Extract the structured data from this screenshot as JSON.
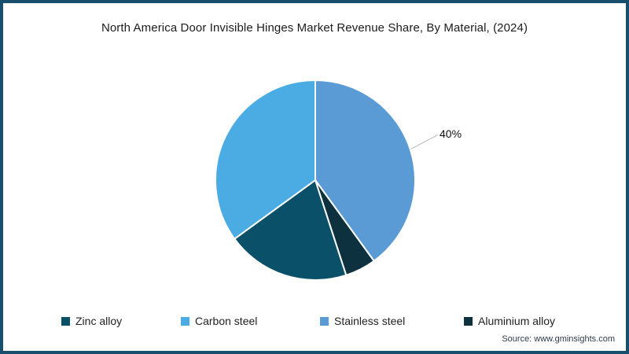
{
  "chart_data": {
    "type": "pie",
    "title": "North America Door Invisible Hinges Market Revenue Share, By Material, (2024)",
    "slices": [
      {
        "label": "Stainless steel",
        "value": 40,
        "color": "#5b9bd5"
      },
      {
        "label": "Aluminium alloy",
        "value": 5,
        "color": "#0e3140"
      },
      {
        "label": "Zinc alloy",
        "value": 20,
        "color": "#0a5068"
      },
      {
        "label": "Carbon steel",
        "value": 35,
        "color": "#4aace2"
      }
    ],
    "start_angle": "12-oclock-clockwise",
    "annotation": {
      "text": "40%",
      "slice": "Stainless steel"
    },
    "legend_order": [
      "Zinc alloy",
      "Carbon steel",
      "Stainless steel",
      "Aluminium alloy"
    ],
    "legend_position": "bottom",
    "grid": false
  },
  "source": {
    "text": "Source: www.gminsights.com"
  },
  "frame": {
    "border_color": "#174f6d",
    "background": "#ffffff"
  }
}
